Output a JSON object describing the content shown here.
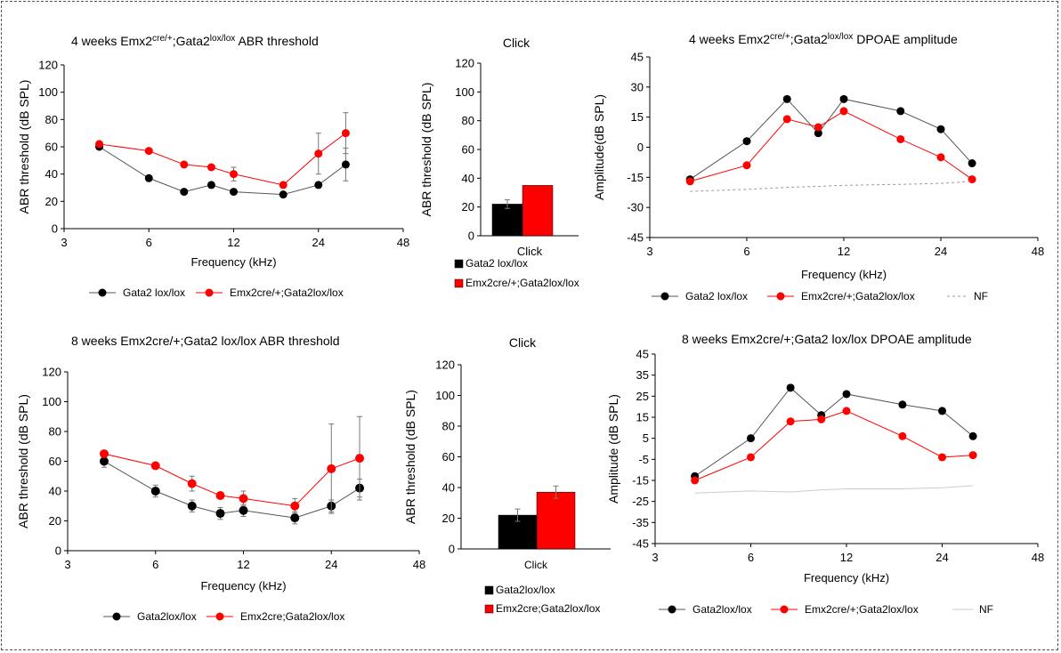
{
  "chart_data": [
    {
      "type": "line",
      "title": "4 weeks Emx2cre/+;Gata2lox/lox ABR threshold",
      "title_parts": [
        "4 weeks Emx2",
        "cre/+",
        ";Gata2",
        "lox/lox",
        " ABR threshold"
      ],
      "xlabel": "Frequency (kHz)",
      "ylabel": "ABR threshold (dB SPL)",
      "xscale": "log2",
      "xlim": [
        3,
        48
      ],
      "xticks": [
        3,
        6,
        12,
        24,
        48
      ],
      "xtick_labels": [
        "3",
        "6",
        "12",
        "24",
        "48"
      ],
      "ylim": [
        0,
        120
      ],
      "yticks": [
        0,
        20,
        40,
        60,
        80,
        100,
        120
      ],
      "series": [
        {
          "name": "Gata2 lox/lox",
          "color": "#000000",
          "x": [
            4,
            6,
            8,
            10,
            12,
            18,
            24,
            30
          ],
          "y": [
            60,
            37,
            27,
            32,
            27,
            25,
            32,
            47
          ],
          "err": [
            0,
            0,
            0,
            0,
            0,
            0,
            0,
            12
          ]
        },
        {
          "name": "Emx2cre/+;Gata2lox/lox",
          "color": "#ff0000",
          "x": [
            4,
            6,
            8,
            10,
            12,
            18,
            24,
            30
          ],
          "y": [
            62,
            57,
            47,
            45,
            40,
            32,
            55,
            70
          ],
          "err": [
            0,
            0,
            0,
            0,
            5,
            0,
            15,
            15
          ]
        }
      ]
    },
    {
      "type": "bar",
      "title": "Click",
      "xlabel": "Click",
      "ylabel": "ABR threshold (dB SPL)",
      "ylim": [
        0,
        120
      ],
      "yticks": [
        0,
        20,
        40,
        60,
        80,
        100,
        120
      ],
      "categories": [
        "Click"
      ],
      "series": [
        {
          "name": "Gata2 lox/lox",
          "color": "#000000",
          "values": [
            22
          ],
          "err": [
            3
          ]
        },
        {
          "name": "Emx2cre/+;Gata2lox/lox",
          "color": "#ff0000",
          "values": [
            35
          ],
          "err": [
            0
          ]
        }
      ]
    },
    {
      "type": "line",
      "title": "4 weeks Emx2cre/+;Gata2lox/lox DPOAE amplitude",
      "title_parts": [
        "4 weeks Emx2",
        "cre/+",
        ";Gata2",
        "lox/lox",
        " DPOAE amplitude"
      ],
      "xlabel": "Frequency (kHz)",
      "ylabel": "Amplitude(dB  SPL)",
      "xscale": "log2",
      "xlim": [
        3,
        48
      ],
      "xticks": [
        3,
        6,
        12,
        24,
        48
      ],
      "xtick_labels": [
        "3",
        "6",
        "12",
        "24",
        "48"
      ],
      "ylim": [
        -45,
        45
      ],
      "yticks": [
        -45,
        -30,
        -15,
        0,
        15,
        30,
        45
      ],
      "series": [
        {
          "name": "Gata2  lox/lox",
          "color": "#000000",
          "x": [
            4,
            6,
            8,
            10,
            12,
            18,
            24,
            30
          ],
          "y": [
            -16,
            3,
            24,
            7,
            24,
            18,
            9,
            -8
          ]
        },
        {
          "name": "Emx2cre/+;Gata2lox/lox",
          "color": "#ff0000",
          "x": [
            4,
            6,
            8,
            10,
            12,
            18,
            24,
            30
          ],
          "y": [
            -17,
            -9,
            14,
            10,
            18,
            4,
            -5,
            -16
          ]
        },
        {
          "name": "NF",
          "color": "#999999",
          "dashed": true,
          "x": [
            4,
            6,
            8,
            10,
            12,
            18,
            24,
            30
          ],
          "y": [
            -22,
            -21,
            -20,
            -19.5,
            -19,
            -18.5,
            -18,
            -17
          ]
        }
      ]
    },
    {
      "type": "line",
      "title": "8 weeks Emx2cre/+;Gata2 lox/lox ABR threshold",
      "xlabel": "Frequency (kHz)",
      "ylabel": "ABR threshold (dB SPL)",
      "xscale": "log2",
      "xlim": [
        3,
        48
      ],
      "xticks": [
        3,
        6,
        12,
        24,
        48
      ],
      "xtick_labels": [
        "3",
        "6",
        "12",
        "24",
        "48"
      ],
      "ylim": [
        0,
        120
      ],
      "yticks": [
        0,
        20,
        40,
        60,
        80,
        100,
        120
      ],
      "series": [
        {
          "name": "Gata2lox/lox",
          "color": "#000000",
          "x": [
            4,
            6,
            8,
            10,
            12,
            18,
            24,
            30
          ],
          "y": [
            60,
            40,
            30,
            25,
            27,
            22,
            30,
            42
          ],
          "err": [
            4,
            4,
            4,
            4,
            4,
            4,
            4,
            6
          ]
        },
        {
          "name": "Emx2cre;Gata2lox/lox",
          "color": "#ff0000",
          "x": [
            4,
            6,
            8,
            10,
            12,
            18,
            24,
            30
          ],
          "y": [
            65,
            57,
            45,
            37,
            35,
            30,
            55,
            62
          ],
          "err": [
            0,
            0,
            5,
            0,
            5,
            5,
            30,
            28
          ]
        }
      ]
    },
    {
      "type": "bar",
      "title": "Click",
      "xlabel": "Click",
      "ylabel": "ABR threshold (dB SPL)",
      "ylim": [
        0,
        120
      ],
      "yticks": [
        0,
        20,
        40,
        60,
        80,
        100,
        120
      ],
      "categories": [
        "Click"
      ],
      "series": [
        {
          "name": "Gata2lox/lox",
          "color": "#000000",
          "values": [
            22
          ],
          "err": [
            4
          ]
        },
        {
          "name": "Emx2cre;Gata2lox/lox",
          "color": "#ff0000",
          "values": [
            37
          ],
          "err": [
            4
          ]
        }
      ]
    },
    {
      "type": "line",
      "title": "8 weeks Emx2cre/+;Gata2 lox/lox DPOAE amplitude",
      "xlabel": "Frequency (kHz)",
      "ylabel": "Amplitude  (dB SPL)",
      "xscale": "log2",
      "xlim": [
        3,
        48
      ],
      "xticks": [
        3,
        6,
        12,
        24,
        48
      ],
      "xtick_labels": [
        "3",
        "6",
        "12",
        "24",
        "48"
      ],
      "ylim": [
        -45,
        45
      ],
      "yticks": [
        -45,
        -35,
        -25,
        -15,
        -5,
        5,
        15,
        25,
        35,
        45
      ],
      "series": [
        {
          "name": "Gata2lox/lox",
          "color": "#000000",
          "x": [
            4,
            6,
            8,
            10,
            12,
            18,
            24,
            30
          ],
          "y": [
            -13,
            5,
            29,
            16,
            26,
            21,
            18,
            6
          ]
        },
        {
          "name": "Emx2cre/+;Gata2lox/lox",
          "color": "#ff0000",
          "x": [
            4,
            6,
            8,
            10,
            12,
            18,
            24,
            30
          ],
          "y": [
            -15,
            -4,
            13,
            14,
            18,
            6,
            -4,
            -3
          ]
        },
        {
          "name": "NF",
          "color": "#cccccc",
          "x": [
            4,
            6,
            8,
            10,
            12,
            18,
            24,
            30
          ],
          "y": [
            -21,
            -20,
            -20.5,
            -19.5,
            -19,
            -19,
            -18.5,
            -17.5
          ]
        }
      ]
    }
  ]
}
